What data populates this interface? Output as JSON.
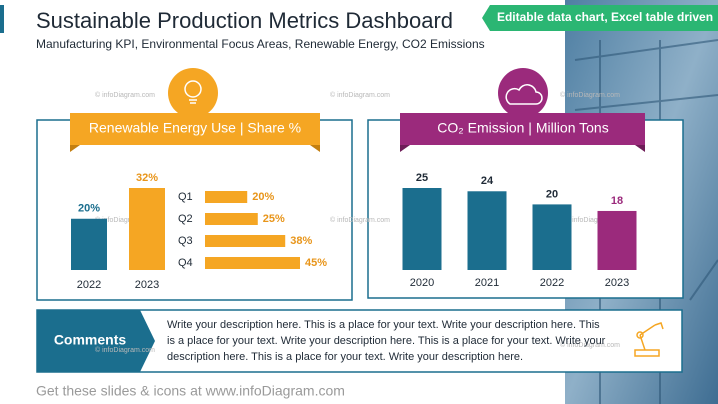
{
  "header": {
    "title": "Sustainable Production Metrics Dashboard",
    "subtitle": "Manufacturing KPI, Environmental Focus Areas, Renewable Energy, CO2 Emissions",
    "badge": "Editable data chart, Excel table driven"
  },
  "watermark": "© infoDiagram.com",
  "chart_data": [
    {
      "type": "bar",
      "title": "Renewable Energy Use | Share %",
      "categories": [
        "2022",
        "2023"
      ],
      "values": [
        20,
        32
      ],
      "value_labels": [
        "20%",
        "32%"
      ],
      "colors": [
        "#1b6e8e",
        "#f5a623"
      ],
      "label_colors": [
        "#1b6e8e",
        "#e8951a"
      ]
    },
    {
      "type": "hbar",
      "categories": [
        "Q1",
        "Q2",
        "Q3",
        "Q4"
      ],
      "values": [
        20,
        25,
        38,
        45
      ],
      "value_labels": [
        "20%",
        "25%",
        "38%",
        "45%"
      ],
      "colors": [
        "#f5a623",
        "#f5a623",
        "#f5a623",
        "#f5a623"
      ],
      "label_colors": [
        "#e8951a",
        "#e8951a",
        "#e8951a",
        "#e8951a"
      ]
    },
    {
      "type": "bar",
      "title": "CO₂ Emission | Million Tons",
      "categories": [
        "2020",
        "2021",
        "2022",
        "2023"
      ],
      "values": [
        25,
        24,
        20,
        18
      ],
      "colors": [
        "#1b6e8e",
        "#1b6e8e",
        "#1b6e8e",
        "#9b2a7c"
      ],
      "label_colors": [
        "#1f2a36",
        "#1f2a36",
        "#1f2a36",
        "#9b2a7c"
      ]
    }
  ],
  "comments": {
    "label": "Comments",
    "text": "Write your description here. This is a place for your text. Write your description here. This is a place for your text. Write your description here. This is a place for your text. Write your description here. This is a place for your text. Write your description here."
  },
  "footer": "Get these slides & icons at www.infoDiagram.com"
}
